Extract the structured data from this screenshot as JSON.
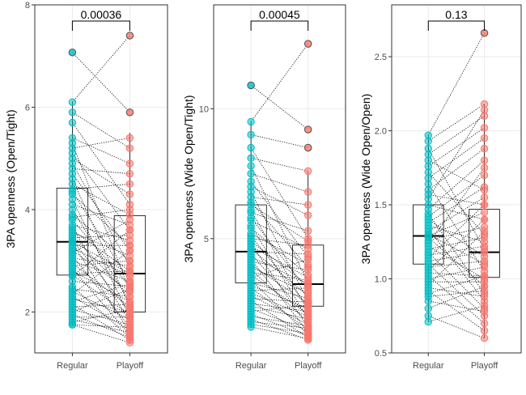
{
  "chart_data": [
    {
      "type": "box+paired-scatter",
      "ylabel": "3PA openness (Open/Tight)",
      "categories": [
        "Regular",
        "Playoff"
      ],
      "ylim": [
        1.2,
        8.0
      ],
      "yticks": [
        2,
        4,
        6,
        8
      ],
      "yticklabels": [
        "2",
        "4",
        "6",
        "8"
      ],
      "pvalue_label": "0.00036",
      "colors": {
        "Regular": "#00bfc4",
        "Playoff": "#f8766d"
      },
      "boxes": [
        {
          "group": "Regular",
          "q1": 2.72,
          "median": 3.37,
          "q3": 4.42,
          "whisker_low": 1.75,
          "whisker_high": 6.1
        },
        {
          "group": "Playoff",
          "q1": 2.0,
          "median": 2.75,
          "q3": 3.88,
          "whisker_low": 1.4,
          "whisker_high": 5.5
        }
      ],
      "outliers": [
        {
          "group": "Regular",
          "value": 7.07
        },
        {
          "group": "Playoff",
          "value": 7.4
        },
        {
          "group": "Playoff",
          "value": 5.9
        }
      ],
      "pairs": [
        [
          7.07,
          5.9
        ],
        [
          6.1,
          7.4
        ],
        [
          5.9,
          5.2
        ],
        [
          5.7,
          4.1
        ],
        [
          5.4,
          4.9
        ],
        [
          5.3,
          2.4
        ],
        [
          5.2,
          5.4
        ],
        [
          5.1,
          3.6
        ],
        [
          5.0,
          4.3
        ],
        [
          4.9,
          2.9
        ],
        [
          4.8,
          4.7
        ],
        [
          4.7,
          3.2
        ],
        [
          4.6,
          2.1
        ],
        [
          4.5,
          3.9
        ],
        [
          4.4,
          4.5
        ],
        [
          4.35,
          2.6
        ],
        [
          4.3,
          3.3
        ],
        [
          4.2,
          1.9
        ],
        [
          4.1,
          3.7
        ],
        [
          4.0,
          2.2
        ],
        [
          3.9,
          3.0
        ],
        [
          3.85,
          4.0
        ],
        [
          3.8,
          2.5
        ],
        [
          3.7,
          3.4
        ],
        [
          3.65,
          1.8
        ],
        [
          3.6,
          2.8
        ],
        [
          3.55,
          3.1
        ],
        [
          3.5,
          2.3
        ],
        [
          3.45,
          3.5
        ],
        [
          3.4,
          2.0
        ],
        [
          3.37,
          2.75
        ],
        [
          3.35,
          1.6
        ],
        [
          3.3,
          3.3
        ],
        [
          3.25,
          2.7
        ],
        [
          3.2,
          2.4
        ],
        [
          3.15,
          3.8
        ],
        [
          3.1,
          1.7
        ],
        [
          3.05,
          2.9
        ],
        [
          3.0,
          2.6
        ],
        [
          2.95,
          2.1
        ],
        [
          2.9,
          3.0
        ],
        [
          2.85,
          1.55
        ],
        [
          2.8,
          2.2
        ],
        [
          2.75,
          2.8
        ],
        [
          2.72,
          1.95
        ],
        [
          2.7,
          3.6
        ],
        [
          2.6,
          2.5
        ],
        [
          2.5,
          1.5
        ],
        [
          2.45,
          2.3
        ],
        [
          2.4,
          1.85
        ],
        [
          2.35,
          3.2
        ],
        [
          2.3,
          1.65
        ],
        [
          2.25,
          2.0
        ],
        [
          2.2,
          2.55
        ],
        [
          2.15,
          1.45
        ],
        [
          2.1,
          2.15
        ],
        [
          2.05,
          1.75
        ],
        [
          2.0,
          2.45
        ],
        [
          1.95,
          1.5
        ],
        [
          1.9,
          1.9
        ],
        [
          1.85,
          1.6
        ],
        [
          1.8,
          2.05
        ],
        [
          1.75,
          1.7
        ],
        [
          1.75,
          1.4
        ]
      ]
    },
    {
      "type": "box+paired-scatter",
      "ylabel": "3PA openness (Wide Open/Tight)",
      "categories": [
        "Regular",
        "Playoff"
      ],
      "ylim": [
        0.6,
        14.0
      ],
      "yticks": [
        5,
        10
      ],
      "yticklabels": [
        "5",
        "10"
      ],
      "pvalue_label": "0.00045",
      "colors": {
        "Regular": "#00bfc4",
        "Playoff": "#f8766d"
      },
      "boxes": [
        {
          "group": "Regular",
          "q1": 3.3,
          "median": 4.5,
          "q3": 6.3,
          "whisker_low": 1.6,
          "whisker_high": 9.5
        },
        {
          "group": "Playoff",
          "q1": 2.4,
          "median": 3.25,
          "q3": 4.75,
          "whisker_low": 1.1,
          "whisker_high": 7.6
        }
      ],
      "outliers": [
        {
          "group": "Regular",
          "value": 10.9
        },
        {
          "group": "Playoff",
          "value": 12.5
        },
        {
          "group": "Playoff",
          "value": 9.2
        },
        {
          "group": "Playoff",
          "value": 8.5
        }
      ],
      "pairs": [
        [
          10.9,
          9.2
        ],
        [
          9.5,
          12.5
        ],
        [
          9.0,
          8.5
        ],
        [
          8.5,
          5.0
        ],
        [
          8.1,
          7.6
        ],
        [
          7.8,
          3.3
        ],
        [
          7.5,
          6.8
        ],
        [
          7.2,
          4.3
        ],
        [
          7.0,
          5.9
        ],
        [
          6.8,
          2.6
        ],
        [
          6.6,
          6.3
        ],
        [
          6.4,
          3.9
        ],
        [
          6.3,
          4.9
        ],
        [
          6.1,
          2.2
        ],
        [
          6.0,
          5.3
        ],
        [
          5.8,
          3.0
        ],
        [
          5.7,
          4.6
        ],
        [
          5.5,
          1.9
        ],
        [
          5.4,
          3.6
        ],
        [
          5.2,
          4.0
        ],
        [
          5.1,
          2.4
        ],
        [
          5.0,
          4.75
        ],
        [
          4.9,
          3.2
        ],
        [
          4.8,
          1.6
        ],
        [
          4.7,
          3.5
        ],
        [
          4.6,
          2.8
        ],
        [
          4.5,
          4.4
        ],
        [
          4.4,
          2.0
        ],
        [
          4.3,
          3.25
        ],
        [
          4.2,
          1.4
        ],
        [
          4.1,
          3.8
        ],
        [
          4.0,
          2.5
        ],
        [
          3.9,
          2.9
        ],
        [
          3.8,
          1.8
        ],
        [
          3.7,
          3.4
        ],
        [
          3.6,
          2.1
        ],
        [
          3.5,
          4.2
        ],
        [
          3.4,
          1.3
        ],
        [
          3.3,
          2.7
        ],
        [
          3.2,
          2.3
        ],
        [
          3.1,
          1.5
        ],
        [
          3.0,
          3.1
        ],
        [
          2.9,
          2.0
        ],
        [
          2.8,
          1.7
        ],
        [
          2.7,
          2.55
        ],
        [
          2.6,
          1.2
        ],
        [
          2.5,
          2.2
        ],
        [
          2.4,
          1.9
        ],
        [
          2.3,
          1.45
        ],
        [
          2.2,
          2.45
        ],
        [
          2.1,
          1.25
        ],
        [
          2.0,
          1.65
        ],
        [
          1.9,
          1.1
        ],
        [
          1.8,
          1.55
        ],
        [
          1.7,
          1.35
        ],
        [
          1.6,
          1.15
        ]
      ]
    },
    {
      "type": "box+paired-scatter",
      "ylabel": "3PA openness (Wide Open/Open)",
      "categories": [
        "Regular",
        "Playoff"
      ],
      "ylim": [
        0.5,
        2.85
      ],
      "yticks": [
        0.5,
        1.0,
        1.5,
        2.0,
        2.5
      ],
      "yticklabels": [
        "0.5",
        "1.0",
        "1.5",
        "2.0",
        "2.5"
      ],
      "pvalue_label": "0.13",
      "colors": {
        "Regular": "#00bfc4",
        "Playoff": "#f8766d"
      },
      "boxes": [
        {
          "group": "Regular",
          "q1": 1.1,
          "median": 1.29,
          "q3": 1.5,
          "whisker_low": 0.71,
          "whisker_high": 1.97
        },
        {
          "group": "Playoff",
          "q1": 1.01,
          "median": 1.18,
          "q3": 1.47,
          "whisker_low": 0.6,
          "whisker_high": 2.18
        }
      ],
      "outliers": [
        {
          "group": "Playoff",
          "value": 2.66
        }
      ],
      "pairs": [
        [
          1.97,
          2.66
        ],
        [
          1.93,
          2.18
        ],
        [
          1.88,
          1.2
        ],
        [
          1.84,
          2.1
        ],
        [
          1.8,
          1.6
        ],
        [
          1.76,
          2.02
        ],
        [
          1.72,
          1.3
        ],
        [
          1.68,
          1.95
        ],
        [
          1.64,
          1.05
        ],
        [
          1.6,
          1.88
        ],
        [
          1.57,
          1.5
        ],
        [
          1.54,
          2.14
        ],
        [
          1.5,
          1.4
        ],
        [
          1.47,
          1.8
        ],
        [
          1.44,
          0.9
        ],
        [
          1.42,
          1.7
        ],
        [
          1.4,
          1.15
        ],
        [
          1.38,
          1.62
        ],
        [
          1.36,
          1.25
        ],
        [
          1.34,
          0.85
        ],
        [
          1.32,
          1.55
        ],
        [
          1.3,
          1.1
        ],
        [
          1.29,
          1.45
        ],
        [
          1.28,
          0.95
        ],
        [
          1.26,
          1.35
        ],
        [
          1.24,
          1.75
        ],
        [
          1.22,
          1.0
        ],
        [
          1.2,
          1.28
        ],
        [
          1.18,
          0.8
        ],
        [
          1.16,
          1.22
        ],
        [
          1.14,
          1.5
        ],
        [
          1.12,
          1.18
        ],
        [
          1.1,
          0.75
        ],
        [
          1.08,
          1.12
        ],
        [
          1.06,
          1.4
        ],
        [
          1.04,
          1.02
        ],
        [
          1.02,
          0.7
        ],
        [
          1.0,
          1.08
        ],
        [
          0.98,
          0.98
        ],
        [
          0.96,
          1.32
        ],
        [
          0.94,
          0.88
        ],
        [
          0.92,
          0.65
        ],
        [
          0.9,
          1.02
        ],
        [
          0.88,
          0.92
        ],
        [
          0.85,
          0.78
        ],
        [
          0.8,
          0.95
        ],
        [
          0.75,
          0.6
        ],
        [
          0.71,
          0.82
        ]
      ]
    }
  ]
}
